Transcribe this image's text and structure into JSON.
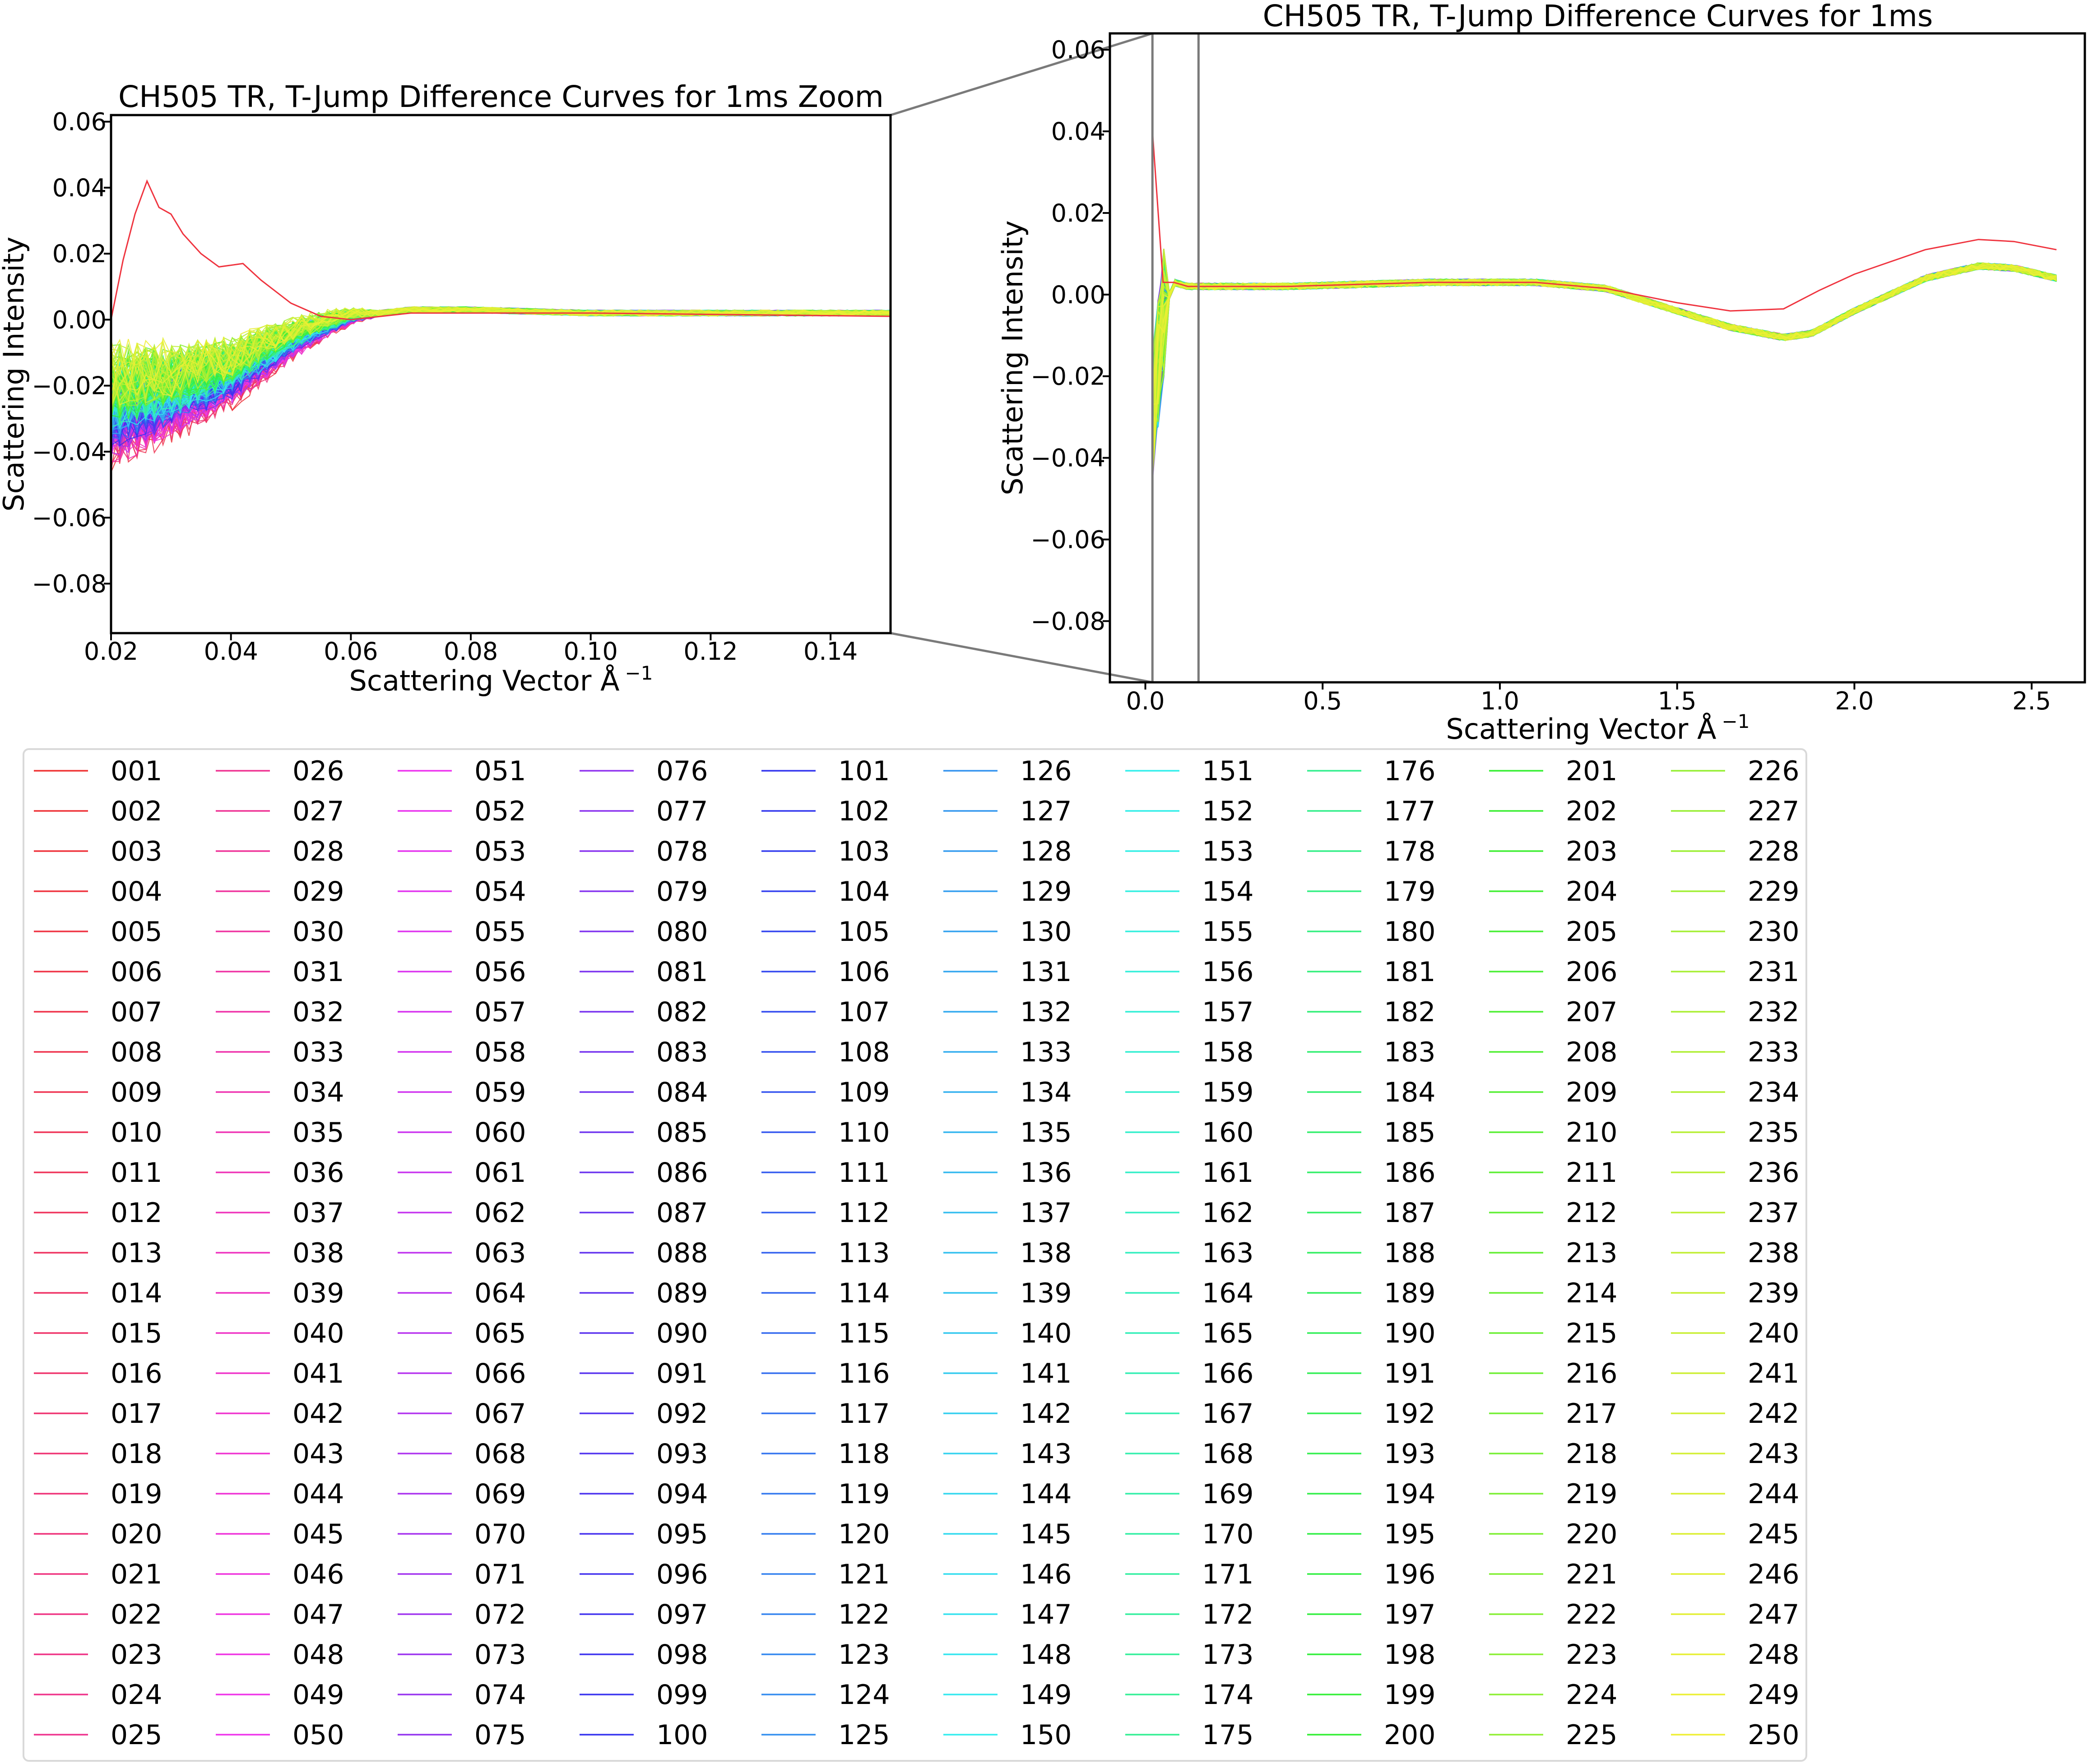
{
  "chart_data": [
    {
      "type": "line",
      "title": "CH505 TR, T-Jump Difference Curves for 1ms Zoom",
      "xlabel": "Scattering Vector Å",
      "xlabel_superscript": "−1",
      "ylabel": "Scattering Intensity",
      "xlim": [
        0.02,
        0.15
      ],
      "ylim": [
        -0.095,
        0.062
      ],
      "xticks": [
        0.02,
        0.04,
        0.06,
        0.08,
        0.1,
        0.12,
        0.14
      ],
      "xtick_labels": [
        "0.02",
        "0.04",
        "0.06",
        "0.08",
        "0.10",
        "0.12",
        "0.14"
      ],
      "yticks": [
        0.06,
        0.04,
        0.02,
        0.0,
        -0.02,
        -0.04,
        -0.06,
        -0.08
      ],
      "ytick_labels": [
        "0.06",
        "0.04",
        "0.02",
        "0.00",
        "−0.02",
        "−0.04",
        "−0.06",
        "−0.08"
      ],
      "grid": false,
      "series_profile": {
        "x": [
          0.02,
          0.025,
          0.03,
          0.035,
          0.04,
          0.045,
          0.05,
          0.055,
          0.06,
          0.07,
          0.08,
          0.1,
          0.12,
          0.15
        ],
        "y": [
          -0.026,
          -0.024,
          -0.022,
          -0.019,
          -0.016,
          -0.011,
          -0.006,
          -0.002,
          0.001,
          0.003,
          0.003,
          0.002,
          0.002,
          0.002
        ]
      },
      "highlight_series": {
        "x": [
          0.02,
          0.022,
          0.024,
          0.026,
          0.028,
          0.03,
          0.032,
          0.035,
          0.038,
          0.042,
          0.045,
          0.05,
          0.055,
          0.06,
          0.07,
          0.1,
          0.15
        ],
        "y": [
          0.0,
          0.018,
          0.032,
          0.042,
          0.034,
          0.032,
          0.026,
          0.02,
          0.016,
          0.017,
          0.012,
          0.005,
          0.001,
          0.0,
          0.002,
          0.002,
          0.001
        ]
      }
    },
    {
      "type": "line",
      "title": "CH505 TR, T-Jump Difference Curves for 1ms",
      "xlabel": "Scattering Vector Å",
      "xlabel_superscript": "−1",
      "ylabel": "Scattering Intensity",
      "xlim": [
        -0.1,
        2.65
      ],
      "ylim": [
        -0.095,
        0.064
      ],
      "xticks": [
        0.0,
        0.5,
        1.0,
        1.5,
        2.0,
        2.5
      ],
      "xtick_labels": [
        "0.0",
        "0.5",
        "1.0",
        "1.5",
        "2.0",
        "2.5"
      ],
      "yticks": [
        0.06,
        0.04,
        0.02,
        0.0,
        -0.02,
        -0.04,
        -0.06,
        -0.08
      ],
      "ytick_labels": [
        "0.06",
        "0.04",
        "0.02",
        "0.00",
        "−0.02",
        "−0.04",
        "−0.06",
        "−0.08"
      ],
      "grid": false,
      "zoom_region": [
        0.02,
        0.15
      ],
      "series_profile": {
        "x": [
          0.02,
          0.05,
          0.08,
          0.12,
          0.2,
          0.4,
          0.8,
          1.1,
          1.3,
          1.5,
          1.65,
          1.8,
          1.88,
          2.0,
          2.2,
          2.35,
          2.45,
          2.57
        ],
        "y": [
          -0.03,
          -0.005,
          0.003,
          0.002,
          0.002,
          0.002,
          0.003,
          0.003,
          0.0015,
          -0.004,
          -0.008,
          -0.0105,
          -0.0095,
          -0.004,
          0.004,
          0.007,
          0.0065,
          0.004
        ]
      },
      "highlight_series": {
        "x": [
          0.02,
          0.05,
          0.08,
          0.12,
          0.2,
          0.4,
          0.8,
          1.1,
          1.3,
          1.5,
          1.65,
          1.8,
          1.9,
          2.0,
          2.2,
          2.35,
          2.45,
          2.57
        ],
        "y": [
          0.04,
          0.003,
          0.003,
          0.002,
          0.002,
          0.002,
          0.003,
          0.003,
          0.0015,
          -0.002,
          -0.004,
          -0.0035,
          0.001,
          0.005,
          0.011,
          0.0135,
          0.013,
          0.011
        ]
      }
    }
  ],
  "legend": {
    "columns": 10,
    "rows": 25,
    "placement": "below",
    "labels": [
      "001",
      "002",
      "003",
      "004",
      "005",
      "006",
      "007",
      "008",
      "009",
      "010",
      "011",
      "012",
      "013",
      "014",
      "015",
      "016",
      "017",
      "018",
      "019",
      "020",
      "021",
      "022",
      "023",
      "024",
      "025",
      "026",
      "027",
      "028",
      "029",
      "030",
      "031",
      "032",
      "033",
      "034",
      "035",
      "036",
      "037",
      "038",
      "039",
      "040",
      "041",
      "042",
      "043",
      "044",
      "045",
      "046",
      "047",
      "048",
      "049",
      "050",
      "051",
      "052",
      "053",
      "054",
      "055",
      "056",
      "057",
      "058",
      "059",
      "060",
      "061",
      "062",
      "063",
      "064",
      "065",
      "066",
      "067",
      "068",
      "069",
      "070",
      "071",
      "072",
      "073",
      "074",
      "075",
      "076",
      "077",
      "078",
      "079",
      "080",
      "081",
      "082",
      "083",
      "084",
      "085",
      "086",
      "087",
      "088",
      "089",
      "090",
      "091",
      "092",
      "093",
      "094",
      "095",
      "096",
      "097",
      "098",
      "099",
      "100",
      "101",
      "102",
      "103",
      "104",
      "105",
      "106",
      "107",
      "108",
      "109",
      "110",
      "111",
      "112",
      "113",
      "114",
      "115",
      "116",
      "117",
      "118",
      "119",
      "120",
      "121",
      "122",
      "123",
      "124",
      "125",
      "126",
      "127",
      "128",
      "129",
      "130",
      "131",
      "132",
      "133",
      "134",
      "135",
      "136",
      "137",
      "138",
      "139",
      "140",
      "141",
      "142",
      "143",
      "144",
      "145",
      "146",
      "147",
      "148",
      "149",
      "150",
      "151",
      "152",
      "153",
      "154",
      "155",
      "156",
      "157",
      "158",
      "159",
      "160",
      "161",
      "162",
      "163",
      "164",
      "165",
      "166",
      "167",
      "168",
      "169",
      "170",
      "171",
      "172",
      "173",
      "174",
      "175",
      "176",
      "177",
      "178",
      "179",
      "180",
      "181",
      "182",
      "183",
      "184",
      "185",
      "186",
      "187",
      "188",
      "189",
      "190",
      "191",
      "192",
      "193",
      "194",
      "195",
      "196",
      "197",
      "198",
      "199",
      "200",
      "201",
      "202",
      "203",
      "204",
      "205",
      "206",
      "207",
      "208",
      "209",
      "210",
      "211",
      "212",
      "213",
      "214",
      "215",
      "216",
      "217",
      "218",
      "219",
      "220",
      "221",
      "222",
      "223",
      "224",
      "225",
      "226",
      "227",
      "228",
      "229",
      "230",
      "231",
      "232",
      "233",
      "234",
      "235",
      "236",
      "237",
      "238",
      "239",
      "240",
      "241",
      "242",
      "243",
      "244",
      "245",
      "246",
      "247",
      "248",
      "249",
      "250"
    ]
  }
}
